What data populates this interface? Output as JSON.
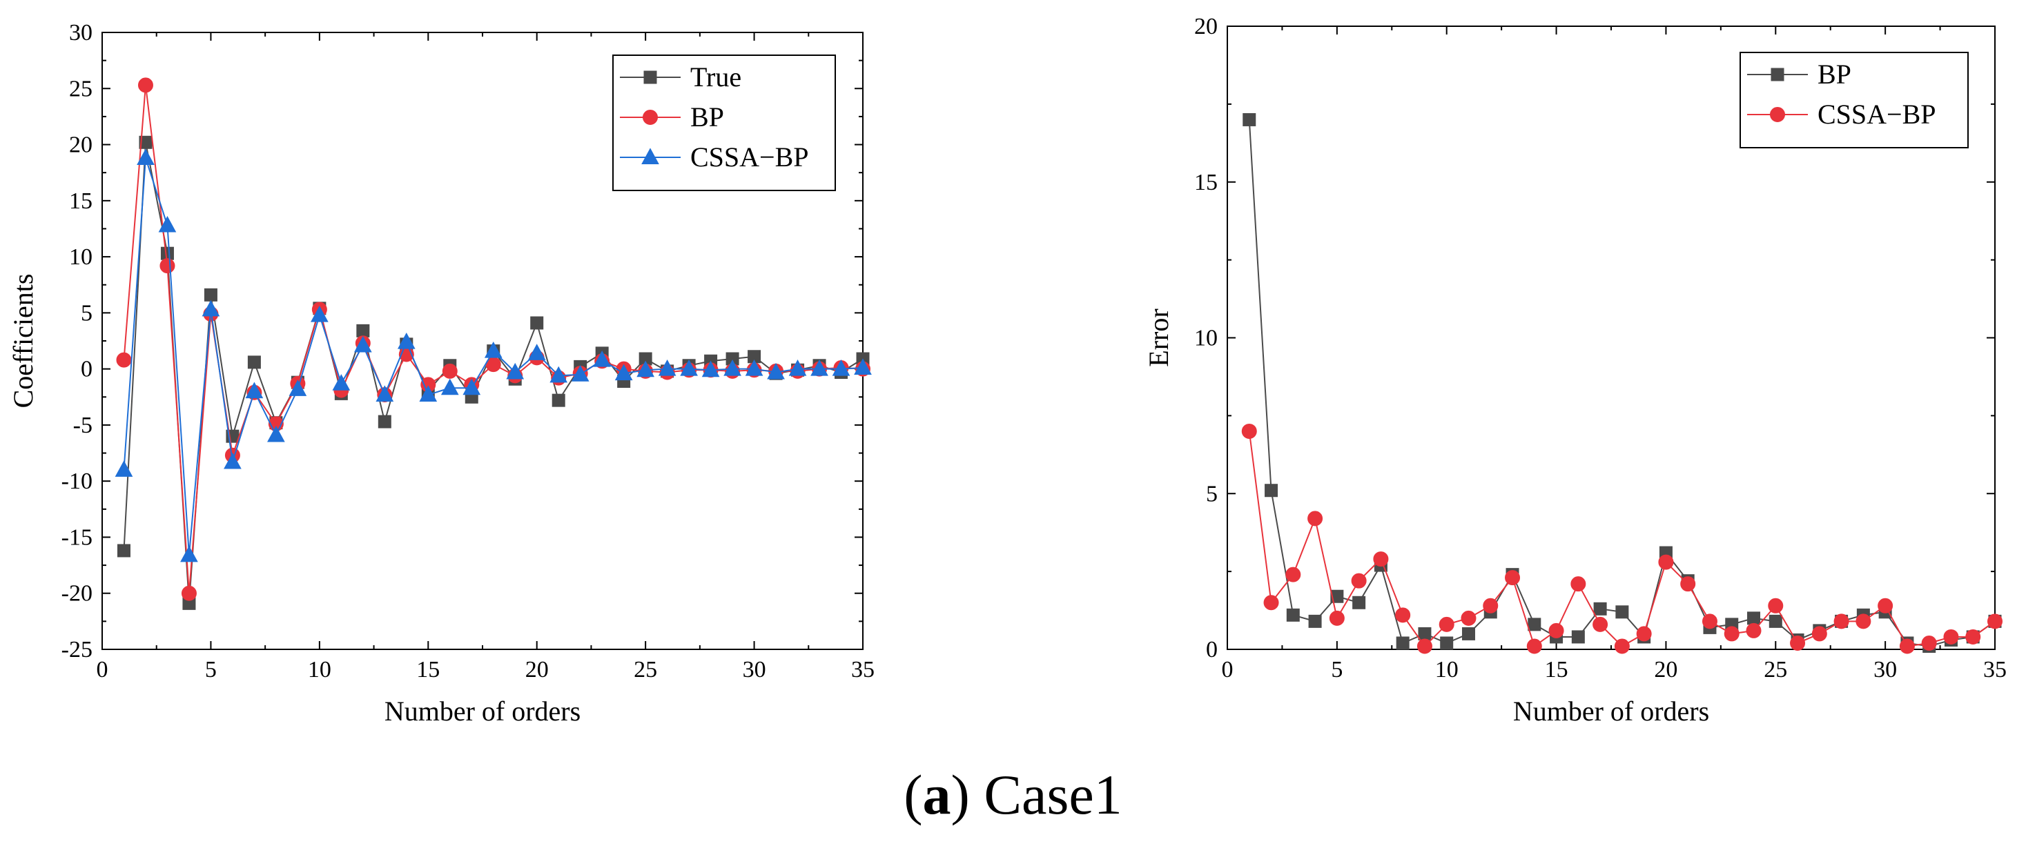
{
  "caption": {
    "open": "(",
    "label": "a",
    "close": ")",
    "text": " Case1"
  },
  "colors": {
    "true": "#4a4a4a",
    "bp_left": "#e8333b",
    "cssa": "#1f6fd6",
    "bp_right": "#4a4a4a",
    "cssa_right": "#e8333b"
  },
  "chart_data": [
    {
      "type": "line",
      "title": "",
      "xlabel": "Number of orders",
      "ylabel": "Coefficients",
      "xlim": [
        0,
        35
      ],
      "ylim": [
        -25,
        30
      ],
      "xticks": [
        0,
        5,
        10,
        15,
        20,
        25,
        30,
        35
      ],
      "yticks": [
        -25,
        -20,
        -15,
        -10,
        -5,
        0,
        5,
        10,
        15,
        20,
        25,
        30
      ],
      "legend_position": "top-right",
      "x": [
        1,
        2,
        3,
        4,
        5,
        6,
        7,
        8,
        9,
        10,
        11,
        12,
        13,
        14,
        15,
        16,
        17,
        18,
        19,
        20,
        21,
        22,
        23,
        24,
        25,
        26,
        27,
        28,
        29,
        30,
        31,
        32,
        33,
        34,
        35
      ],
      "series": [
        {
          "name": "True",
          "marker": "square",
          "color": "#4a4a4a",
          "values": [
            -16.2,
            20.2,
            10.3,
            -20.9,
            6.6,
            -6.0,
            0.6,
            -4.8,
            -1.2,
            5.4,
            -2.2,
            3.4,
            -4.7,
            2.2,
            -2.0,
            0.3,
            -2.5,
            1.6,
            -0.9,
            4.1,
            -2.8,
            0.2,
            1.4,
            -1.1,
            0.9,
            -0.2,
            0.3,
            0.7,
            0.9,
            1.1,
            -0.4,
            -0.1,
            0.3,
            -0.3,
            0.9
          ]
        },
        {
          "name": "BP",
          "marker": "circle",
          "color": "#e8333b",
          "values": [
            0.8,
            25.3,
            9.2,
            -20.0,
            4.9,
            -7.7,
            -2.1,
            -4.9,
            -1.3,
            5.3,
            -1.9,
            2.3,
            -2.3,
            1.3,
            -1.4,
            -0.2,
            -1.4,
            0.4,
            -0.6,
            1.0,
            -0.8,
            -0.4,
            0.7,
            0.0,
            -0.2,
            -0.3,
            -0.1,
            -0.1,
            -0.2,
            -0.1,
            -0.2,
            -0.2,
            0.0,
            0.1,
            0.0
          ]
        },
        {
          "name": "CSSA−BP",
          "marker": "triangle",
          "color": "#1f6fd6",
          "values": [
            -9.0,
            18.8,
            12.8,
            -16.6,
            5.3,
            -8.3,
            -2.0,
            -5.9,
            -1.8,
            4.8,
            -1.3,
            2.1,
            -2.3,
            2.4,
            -2.3,
            -1.7,
            -1.7,
            1.6,
            -0.3,
            1.4,
            -0.6,
            -0.5,
            0.8,
            -0.4,
            -0.1,
            0.0,
            0.0,
            -0.1,
            0.0,
            0.0,
            -0.3,
            0.0,
            0.0,
            0.0,
            0.1
          ]
        }
      ]
    },
    {
      "type": "line",
      "title": "",
      "xlabel": "Number of orders",
      "ylabel": "Error",
      "xlim": [
        0,
        35
      ],
      "ylim": [
        0,
        20
      ],
      "xticks": [
        0,
        5,
        10,
        15,
        20,
        25,
        30,
        35
      ],
      "yticks": [
        0,
        5,
        10,
        15,
        20
      ],
      "legend_position": "top-right",
      "x": [
        1,
        2,
        3,
        4,
        5,
        6,
        7,
        8,
        9,
        10,
        11,
        12,
        13,
        14,
        15,
        16,
        17,
        18,
        19,
        20,
        21,
        22,
        23,
        24,
        25,
        26,
        27,
        28,
        29,
        30,
        31,
        32,
        33,
        34,
        35
      ],
      "series": [
        {
          "name": "BP",
          "marker": "square",
          "color": "#4a4a4a",
          "values": [
            17.0,
            5.1,
            1.1,
            0.9,
            1.7,
            1.5,
            2.7,
            0.2,
            0.5,
            0.2,
            0.5,
            1.2,
            2.4,
            0.8,
            0.4,
            0.4,
            1.3,
            1.2,
            0.4,
            3.1,
            2.2,
            0.7,
            0.8,
            1.0,
            0.9,
            0.3,
            0.6,
            0.9,
            1.1,
            1.2,
            0.2,
            0.1,
            0.3,
            0.4,
            0.9
          ]
        },
        {
          "name": "CSSA−BP",
          "marker": "circle",
          "color": "#e8333b",
          "values": [
            7.0,
            1.5,
            2.4,
            4.2,
            1.0,
            2.2,
            2.9,
            1.1,
            0.1,
            0.8,
            1.0,
            1.4,
            2.3,
            0.1,
            0.6,
            2.1,
            0.8,
            0.1,
            0.5,
            2.8,
            2.1,
            0.9,
            0.5,
            0.6,
            1.4,
            0.2,
            0.5,
            0.9,
            0.9,
            1.4,
            0.1,
            0.2,
            0.4,
            0.4,
            0.9
          ]
        }
      ]
    }
  ]
}
